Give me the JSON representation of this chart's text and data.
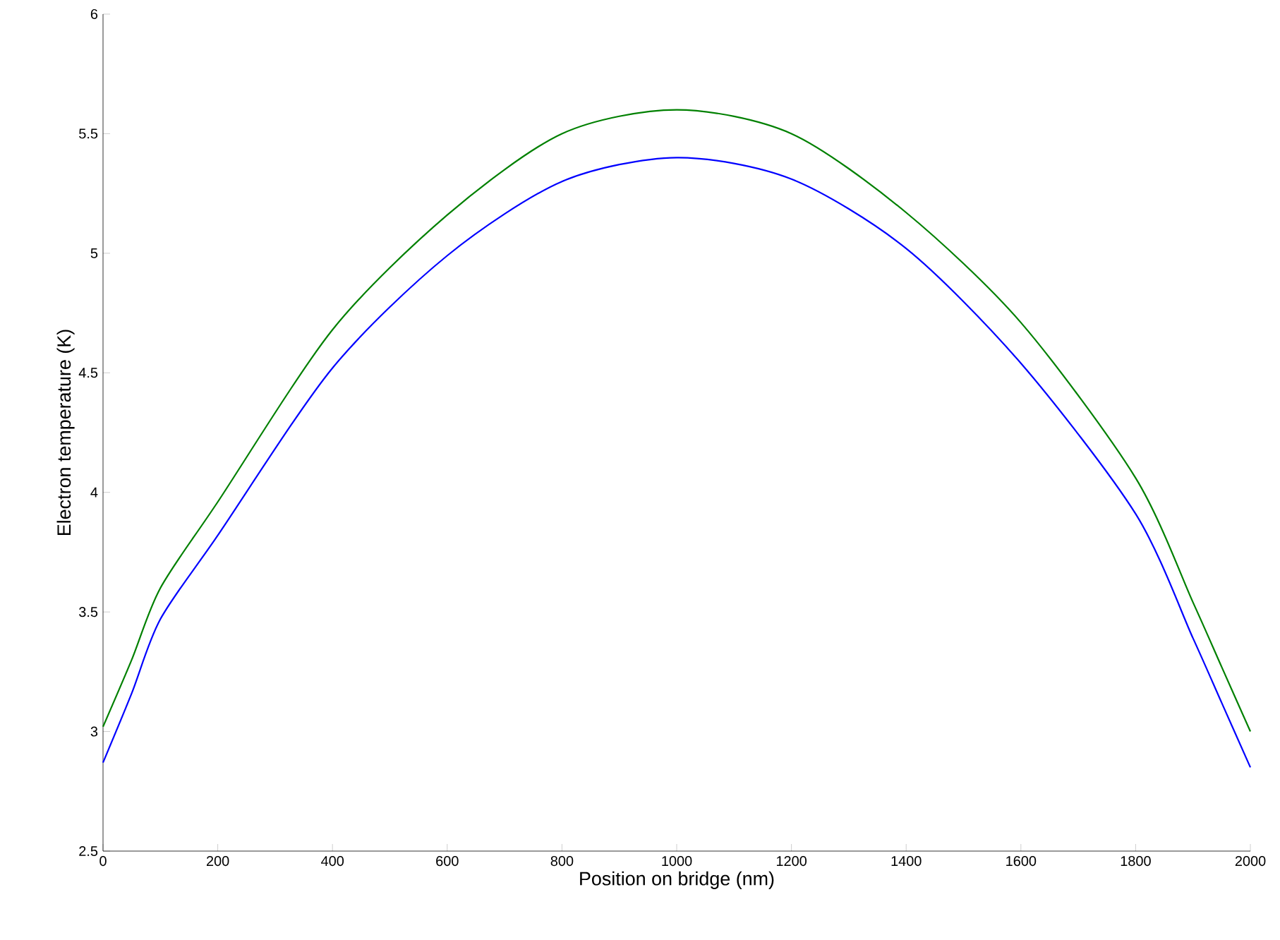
{
  "chart_data": {
    "type": "line",
    "xlabel": "Position on bridge (nm)",
    "ylabel": "Electron temperature (K)",
    "x": [
      0,
      50,
      100,
      200,
      400,
      600,
      800,
      1000,
      1200,
      1400,
      1600,
      1800,
      1900,
      1950,
      2000
    ],
    "series": [
      {
        "color": "#008000",
        "values": [
          3.02,
          3.3,
          3.6,
          3.96,
          4.68,
          5.16,
          5.5,
          5.6,
          5.5,
          5.17,
          4.71,
          4.06,
          3.54,
          3.27,
          3.0
        ]
      },
      {
        "color": "#0000ff",
        "values": [
          2.87,
          3.16,
          3.47,
          3.82,
          4.52,
          4.99,
          5.3,
          5.4,
          5.31,
          5.02,
          4.54,
          3.91,
          3.39,
          3.12,
          2.85
        ]
      }
    ],
    "xlim": [
      0,
      2000
    ],
    "xticks": [
      0,
      200,
      400,
      600,
      800,
      1000,
      1200,
      1400,
      1600,
      1800,
      2000
    ],
    "ylim": [
      2.5,
      6
    ],
    "yticks": [
      2.5,
      3,
      3.5,
      4,
      4.5,
      5,
      5.5,
      6
    ],
    "grid": false,
    "marker": "none",
    "line_style": "solid"
  }
}
